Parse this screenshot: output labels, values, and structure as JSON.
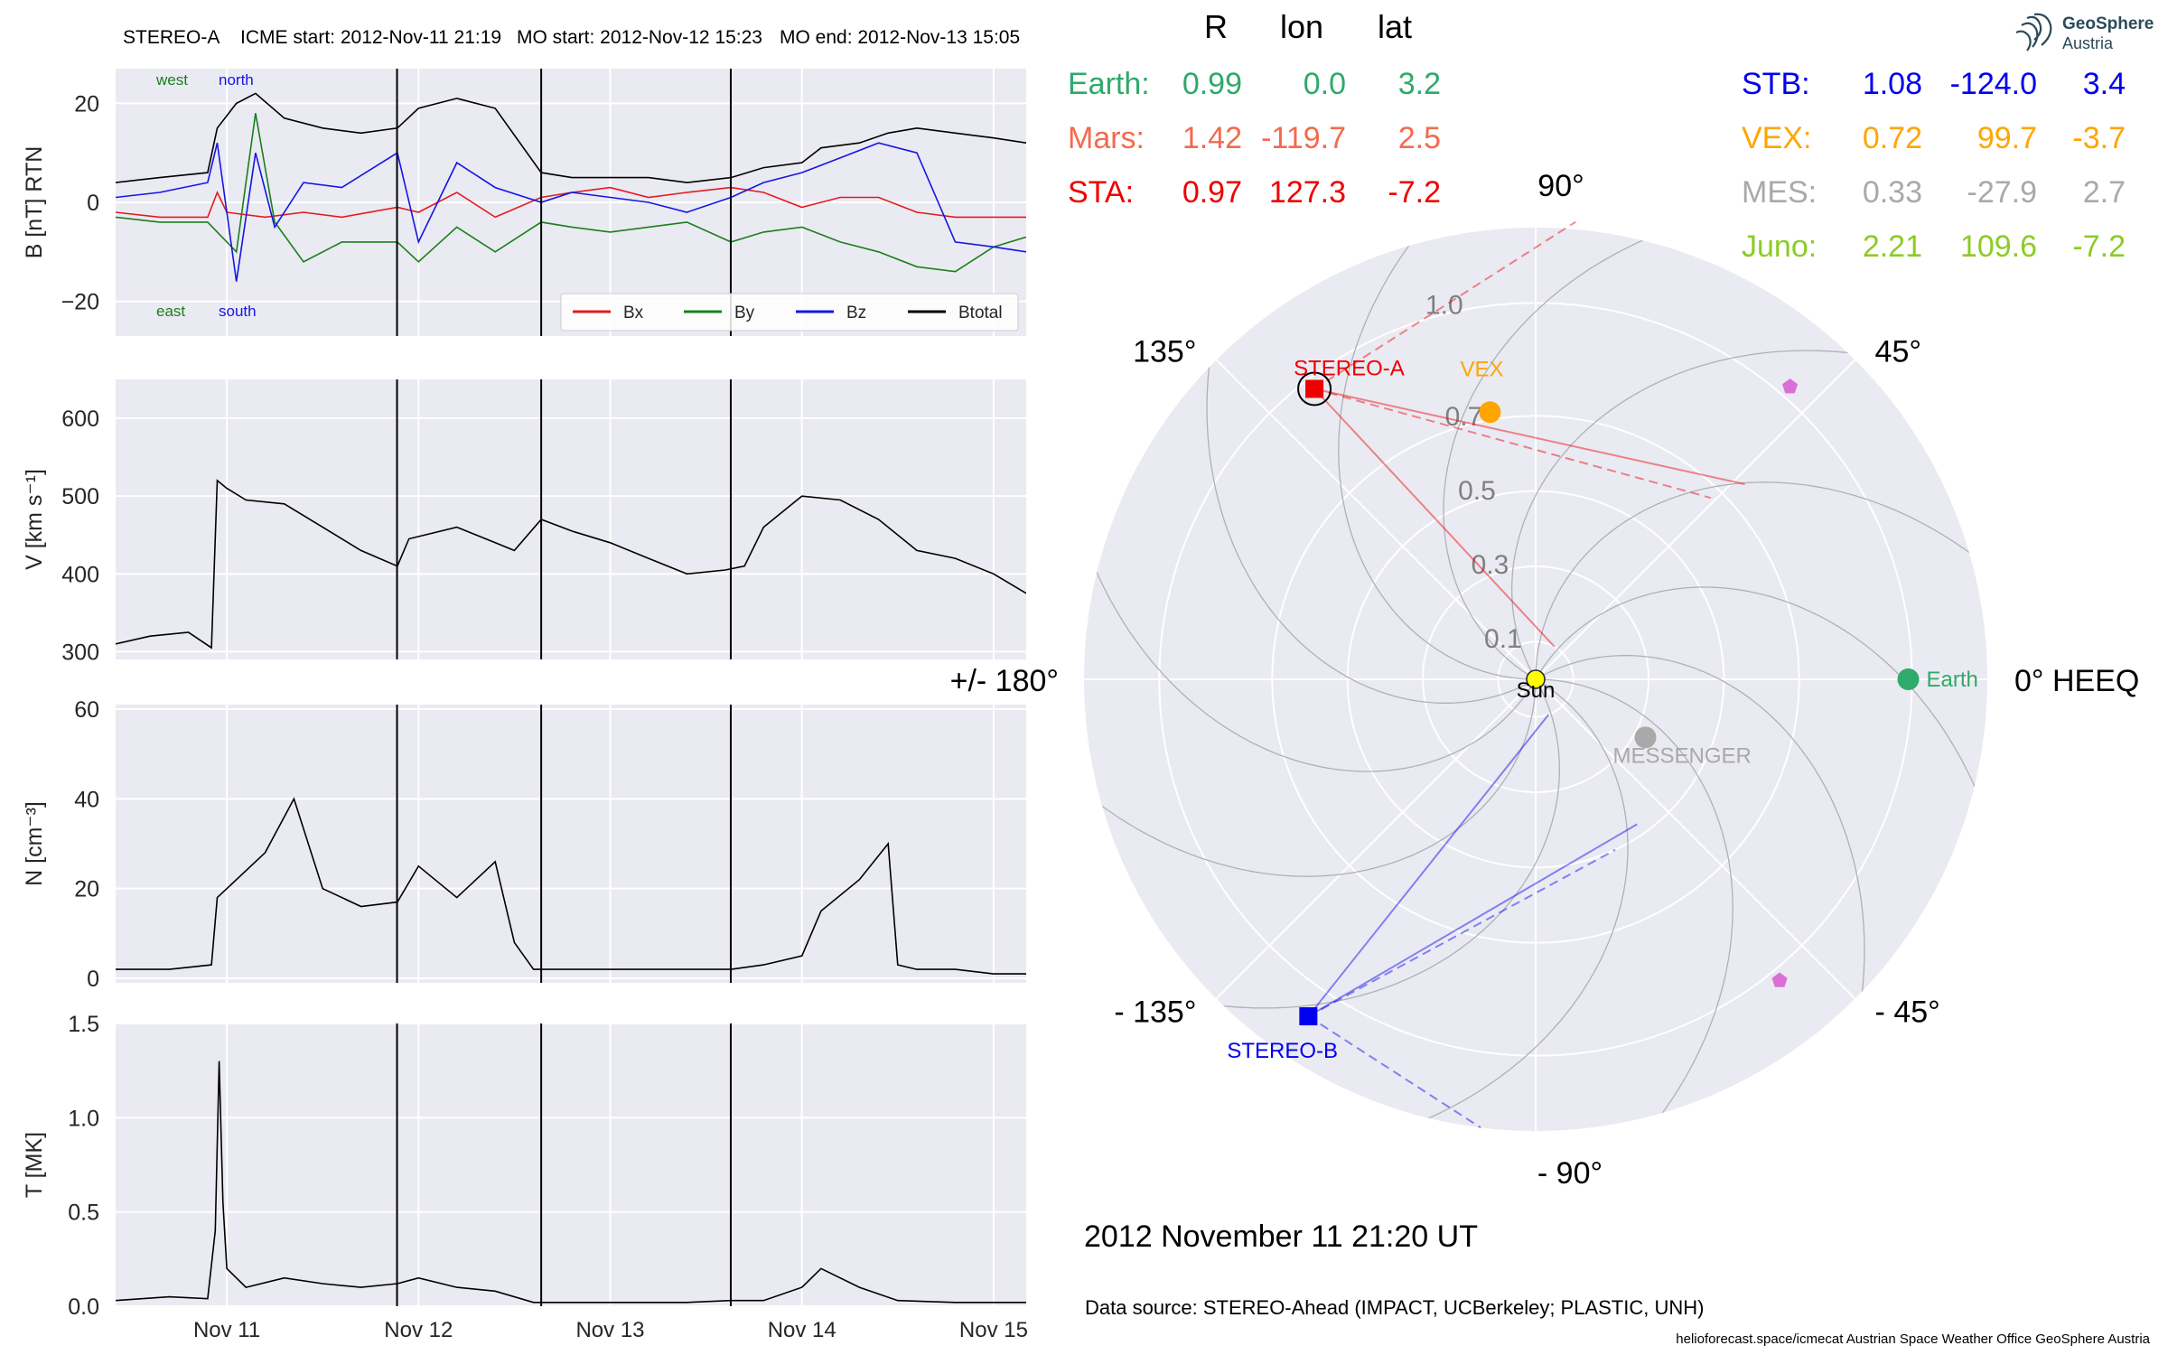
{
  "header": {
    "spacecraft": "STEREO-A",
    "icme_start": "ICME start: 2012-Nov-11 21:19",
    "mo_start": "MO start: 2012-Nov-12 15:23",
    "mo_end": "MO end: 2012-Nov-13 15:05"
  },
  "timeline": {
    "ticks": [
      "Nov 11",
      "Nov 12",
      "Nov 13",
      "Nov 14",
      "Nov 15"
    ],
    "range_days": [
      -0.58,
      4.17
    ],
    "event_lines_days": [
      0.888,
      1.64,
      2.629
    ]
  },
  "colors": {
    "bx": "#e41a1c",
    "by": "#1a7f1a",
    "bz": "#1515e6",
    "btotal": "#000000",
    "panel_bg": "#eaeaf2",
    "grid": "#ffffff",
    "earth": "#2eaa6a",
    "mars": "#f46a4e",
    "sta": "#ee0000",
    "stb": "#0000ee",
    "vex": "#ffa500",
    "mes": "#a9a9a9",
    "juno": "#8ccc24"
  },
  "chart_data": [
    {
      "type": "line",
      "id": "B",
      "ylabel": "B [nT] RTN",
      "ylim": [
        -27,
        27
      ],
      "yticks": [
        "20",
        "0",
        "−20"
      ],
      "corner_labels": {
        "west": "west",
        "north": "north",
        "east": "east",
        "south": "south"
      },
      "legend": {
        "placement": "bottom-right",
        "entries": [
          "Bx",
          "By",
          "Bz",
          "Btotal"
        ]
      },
      "series": [
        {
          "name": "Bx",
          "x": [
            -0.58,
            -0.35,
            -0.1,
            -0.05,
            0,
            0.2,
            0.4,
            0.6,
            0.89,
            1.0,
            1.2,
            1.4,
            1.64,
            1.8,
            2.0,
            2.2,
            2.4,
            2.63,
            2.8,
            3.0,
            3.2,
            3.4,
            3.6,
            3.8,
            4.0,
            4.17
          ],
          "y": [
            -2,
            -3,
            -3,
            2,
            -2,
            -3,
            -2,
            -3,
            -1,
            -2,
            2,
            -3,
            1,
            2,
            3,
            1,
            2,
            3,
            2,
            -1,
            1,
            1,
            -2,
            -3,
            -3,
            -3
          ]
        },
        {
          "name": "By",
          "x": [
            -0.58,
            -0.35,
            -0.1,
            -0.05,
            0.05,
            0.15,
            0.25,
            0.4,
            0.6,
            0.89,
            1.0,
            1.2,
            1.4,
            1.64,
            1.8,
            2.0,
            2.2,
            2.4,
            2.63,
            2.8,
            3.0,
            3.2,
            3.4,
            3.6,
            3.8,
            4.0,
            4.17
          ],
          "y": [
            -3,
            -4,
            -4,
            -6,
            -10,
            18,
            -4,
            -12,
            -8,
            -8,
            -12,
            -5,
            -10,
            -4,
            -5,
            -6,
            -5,
            -4,
            -8,
            -6,
            -5,
            -8,
            -10,
            -13,
            -14,
            -9,
            -7
          ]
        },
        {
          "name": "Bz",
          "x": [
            -0.58,
            -0.35,
            -0.1,
            -0.05,
            0.05,
            0.15,
            0.25,
            0.4,
            0.6,
            0.89,
            1.0,
            1.2,
            1.4,
            1.64,
            1.8,
            2.0,
            2.2,
            2.4,
            2.63,
            2.8,
            3.0,
            3.2,
            3.4,
            3.6,
            3.8,
            4.0,
            4.17
          ],
          "y": [
            1,
            2,
            4,
            12,
            -16,
            10,
            -5,
            4,
            3,
            10,
            -8,
            8,
            3,
            0,
            2,
            1,
            0,
            -2,
            1,
            4,
            6,
            9,
            12,
            10,
            -8,
            -9,
            -10
          ]
        },
        {
          "name": "Btotal",
          "x": [
            -0.58,
            -0.35,
            -0.1,
            -0.05,
            0.05,
            0.15,
            0.3,
            0.5,
            0.7,
            0.89,
            1.0,
            1.2,
            1.4,
            1.64,
            1.8,
            2.0,
            2.2,
            2.4,
            2.63,
            2.8,
            3.0,
            3.1,
            3.3,
            3.45,
            3.6,
            3.8,
            4.0,
            4.17
          ],
          "y": [
            4,
            5,
            6,
            15,
            20,
            22,
            17,
            15,
            14,
            15,
            19,
            21,
            19,
            6,
            5,
            5,
            5,
            4,
            5,
            7,
            8,
            11,
            12,
            14,
            15,
            14,
            13,
            12
          ]
        }
      ]
    },
    {
      "type": "line",
      "id": "V",
      "ylabel": "V [km s⁻¹]",
      "ylim": [
        290,
        650
      ],
      "yticks": [
        "600",
        "500",
        "400",
        "300"
      ],
      "series": [
        {
          "name": "V",
          "x": [
            -0.58,
            -0.4,
            -0.2,
            -0.08,
            -0.05,
            0.0,
            0.1,
            0.3,
            0.5,
            0.7,
            0.89,
            0.95,
            1.2,
            1.4,
            1.5,
            1.64,
            1.8,
            2.0,
            2.2,
            2.4,
            2.6,
            2.7,
            2.8,
            2.9,
            3.0,
            3.2,
            3.4,
            3.6,
            3.8,
            4.0,
            4.17
          ],
          "y": [
            310,
            320,
            325,
            305,
            520,
            510,
            495,
            490,
            460,
            430,
            410,
            445,
            460,
            440,
            430,
            470,
            455,
            440,
            420,
            400,
            405,
            410,
            460,
            480,
            500,
            495,
            470,
            430,
            420,
            400,
            375
          ]
        }
      ]
    },
    {
      "type": "line",
      "id": "N",
      "ylabel": "N [cm⁻³]",
      "ylim": [
        -1,
        61
      ],
      "yticks": [
        "60",
        "40",
        "20",
        "0"
      ],
      "series": [
        {
          "name": "N",
          "x": [
            -0.58,
            -0.3,
            -0.08,
            -0.05,
            0.0,
            0.2,
            0.35,
            0.5,
            0.7,
            0.89,
            1.0,
            1.2,
            1.4,
            1.5,
            1.6,
            1.64,
            2.0,
            2.4,
            2.63,
            2.8,
            3.0,
            3.1,
            3.3,
            3.45,
            3.5,
            3.6,
            3.8,
            4.0,
            4.17
          ],
          "y": [
            2,
            2,
            3,
            18,
            20,
            28,
            40,
            20,
            16,
            17,
            25,
            18,
            26,
            8,
            2,
            2,
            2,
            2,
            2,
            3,
            5,
            15,
            22,
            30,
            3,
            2,
            2,
            1,
            1
          ]
        }
      ]
    },
    {
      "type": "line",
      "id": "T",
      "ylabel": "T [MK]",
      "ylim": [
        0,
        1.5
      ],
      "yticks": [
        "1.5",
        "1.0",
        "0.5",
        "0.0"
      ],
      "series": [
        {
          "name": "T",
          "x": [
            -0.58,
            -0.3,
            -0.1,
            -0.06,
            -0.04,
            -0.02,
            0.0,
            0.1,
            0.3,
            0.5,
            0.7,
            0.89,
            1.0,
            1.2,
            1.4,
            1.6,
            2.0,
            2.4,
            2.63,
            2.8,
            3.0,
            3.1,
            3.3,
            3.5,
            3.8,
            4.17
          ],
          "y": [
            0.03,
            0.05,
            0.04,
            0.4,
            1.3,
            0.55,
            0.2,
            0.1,
            0.15,
            0.12,
            0.1,
            0.12,
            0.15,
            0.1,
            0.08,
            0.02,
            0.02,
            0.02,
            0.03,
            0.03,
            0.1,
            0.2,
            0.1,
            0.03,
            0.02,
            0.02
          ]
        }
      ]
    },
    {
      "type": "scatter",
      "id": "polar",
      "projection": "polar",
      "angle_labels": [
        {
          "deg": 90,
          "text": "90°"
        },
        {
          "deg": 45,
          "text": "45°"
        },
        {
          "deg": 0,
          "text": "0° HEEQ"
        },
        {
          "deg": -45,
          "text": "- 45°"
        },
        {
          "deg": -90,
          "text": "- 90°"
        },
        {
          "deg": -135,
          "text": "- 135°"
        },
        {
          "deg": 180,
          "text": "+/- 180°"
        },
        {
          "deg": 135,
          "text": "135°"
        }
      ],
      "radial_labels": [
        "0.1",
        "0.3",
        "0.5",
        "0.7",
        "1.0"
      ],
      "rmax": 1.2,
      "table_headers": {
        "r": "R",
        "lon": "lon",
        "lat": "lat"
      },
      "bodies": [
        {
          "key": "earth",
          "name": "Earth",
          "table_label": "Earth:",
          "r": 0.99,
          "lon": 0.0,
          "lat": 3.2,
          "r_str": "0.99",
          "lon_str": "0.0",
          "lat_str": "3.2",
          "marker": "circle",
          "plot_label": "Earth"
        },
        {
          "key": "mars",
          "name": "Mars",
          "table_label": "Mars:",
          "r": 1.42,
          "lon": -119.7,
          "lat": 2.5,
          "r_str": "1.42",
          "lon_str": "-119.7",
          "lat_str": "2.5",
          "marker": "none",
          "plot_label": ""
        },
        {
          "key": "sta",
          "name": "STEREO-A",
          "table_label": "STA:",
          "r": 0.97,
          "lon": 127.3,
          "lat": -7.2,
          "r_str": "0.97",
          "lon_str": "127.3",
          "lat_str": "-7.2",
          "marker": "square",
          "plot_label": "STEREO-A"
        },
        {
          "key": "stb",
          "name": "STEREO-B",
          "table_label": "STB:",
          "r": 1.08,
          "lon": -124.0,
          "lat": 3.4,
          "r_str": "1.08",
          "lon_str": "-124.0",
          "lat_str": "3.4",
          "marker": "square",
          "plot_label": "STEREO-B"
        },
        {
          "key": "vex",
          "name": "VEX",
          "table_label": "VEX:",
          "r": 0.72,
          "lon": 99.7,
          "lat": -3.7,
          "r_str": "0.72",
          "lon_str": "99.7",
          "lat_str": "-3.7",
          "marker": "circle",
          "plot_label": "VEX"
        },
        {
          "key": "mes",
          "name": "MESSENGER",
          "table_label": "MES:",
          "r": 0.33,
          "lon": -27.9,
          "lat": 2.7,
          "r_str": "0.33",
          "lon_str": "-27.9",
          "lat_str": "2.7",
          "marker": "circle",
          "plot_label": "MESSENGER"
        },
        {
          "key": "juno",
          "name": "Juno",
          "table_label": "Juno:",
          "r": 2.21,
          "lon": 109.6,
          "lat": -7.2,
          "r_str": "2.21",
          "lon_str": "109.6",
          "lat_str": "-7.2",
          "marker": "none",
          "plot_label": ""
        }
      ],
      "extra_markers": [
        {
          "r": 1.03,
          "lon": 49.0,
          "color": "#da70d6"
        },
        {
          "r": 1.03,
          "lon": -51.0,
          "color": "#da70d6"
        }
      ],
      "sun_label": "Sun",
      "fov": {
        "sta": {
          "solid_ends": [
            {
              "r": 0.76,
              "lon": 43.0
            },
            {
              "r": 0.1,
              "lon": 60.0
            }
          ],
          "dashed_ends": [
            {
              "r": 1.22,
              "lon": 85.0
            },
            {
              "r": 0.67,
              "lon": 46.0
            }
          ]
        },
        "stb": {
          "solid_ends": [
            {
              "r": 0.47,
              "lon": -55.0
            },
            {
              "r": 0.1,
              "lon": -70.0
            }
          ],
          "dashed_ends": [
            {
              "r": 0.5,
              "lon": -65.0
            },
            {
              "r": 1.2,
              "lon": -97.0
            }
          ]
        }
      }
    }
  ],
  "footer": {
    "date": "2012 November 11  21:20 UT",
    "source": "Data source: STEREO-Ahead (IMPACT, UCBerkeley; PLASTIC, UNH)",
    "credits": "helioforecast.space/icmecat   Austrian Space Weather Office   GeoSphere Austria"
  },
  "logo": {
    "line1": "GeoSphere",
    "line2": "Austria"
  }
}
